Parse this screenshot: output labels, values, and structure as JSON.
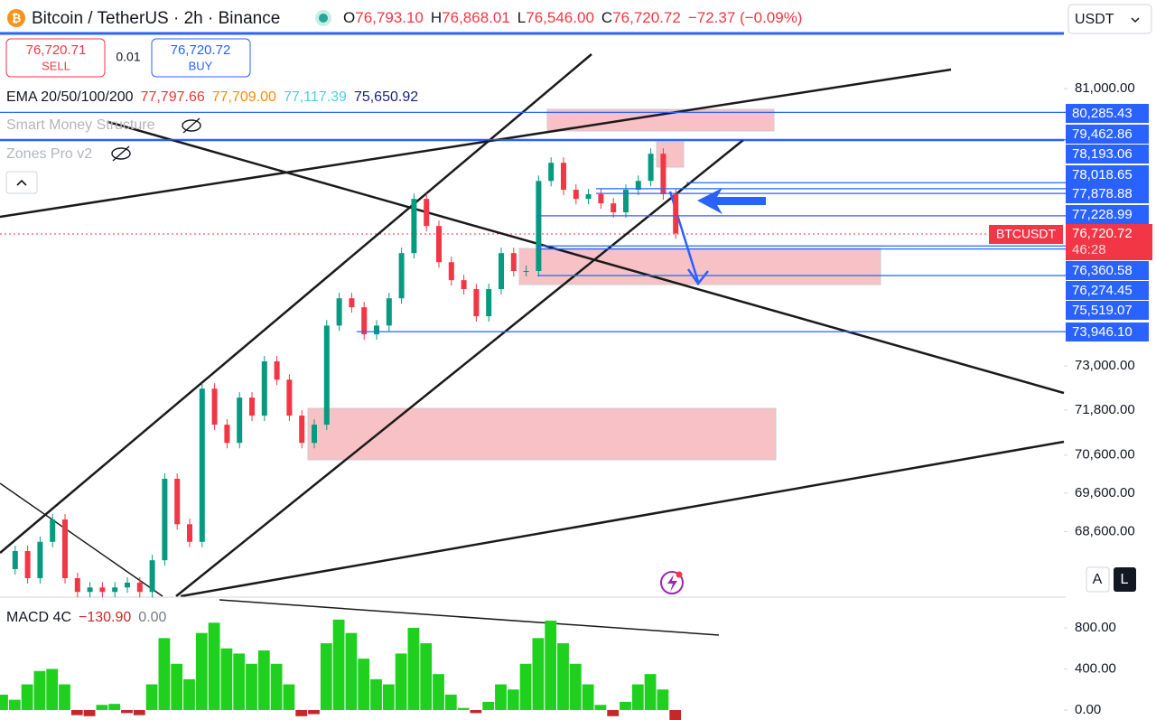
{
  "header": {
    "title": "Bitcoin / TetherUS · 2h · Binance",
    "ohlc": [
      {
        "key": "O",
        "value": "76,793.10"
      },
      {
        "key": "H",
        "value": "76,868.01"
      },
      {
        "key": "L",
        "value": "76,546.00"
      },
      {
        "key": "C",
        "value": "76,720.72"
      }
    ],
    "change": "−72.37 (−0.09%)",
    "currency": "USDT"
  },
  "trade": {
    "sell_price": "76,720.71",
    "sell": "SELL",
    "qty": "0.01",
    "buy_price": "76,720.72",
    "buy": "BUY"
  },
  "indicators": {
    "ema_name": "EMA 20/50/100/200",
    "ema_values": [
      {
        "text": "77,797.66",
        "color": "#e53935"
      },
      {
        "text": "77,709.00",
        "color": "#fb8c00"
      },
      {
        "text": "77,117.39",
        "color": "#4dd0e1"
      },
      {
        "text": "75,650.92",
        "color": "#1a237e"
      }
    ],
    "smc": "Smart Money Structure",
    "zones": "Zones Pro v2"
  },
  "chart": {
    "log": true,
    "ylim": [
      66960,
      83740
    ],
    "yticks": [
      {
        "value": 81000,
        "label": "81,000.00"
      },
      {
        "value": 73000,
        "label": "73,000.00"
      },
      {
        "value": 71800,
        "label": "71,800.00"
      },
      {
        "value": 70600,
        "label": "70,600.00"
      },
      {
        "value": 69600,
        "label": "69,600.00"
      },
      {
        "value": 68600,
        "label": "68,600.00"
      }
    ],
    "levels": [
      {
        "value": 80285.43,
        "label": "80,285.43"
      },
      {
        "value": 79462.86,
        "label": "79,462.86"
      },
      {
        "value": 78193.06,
        "label": "78,193.06"
      },
      {
        "value": 78018.65,
        "label": "78,018.65"
      },
      {
        "value": 77878.88,
        "label": "77,878.88"
      },
      {
        "value": 77228.99,
        "label": "77,228.99"
      },
      {
        "value": 76360.58,
        "label": "76,360.58"
      },
      {
        "value": 76274.45,
        "label": "76,274.45"
      },
      {
        "value": 75519.07,
        "label": "75,519.07"
      },
      {
        "value": 73946.1,
        "label": "73,946.10"
      }
    ],
    "current": {
      "symbol": "BTCUSDT",
      "price": "76,720.72",
      "countdown": "46:28"
    },
    "up_color": "#089981",
    "down_color": "#f23645",
    "closes": [
      67645,
      68105,
      67416,
      68340,
      68915,
      67416,
      67068,
      67181,
      67068,
      67181,
      67303,
      67068,
      67870,
      69976,
      68793,
      68340,
      72382,
      71410,
      70924,
      72139,
      71653,
      73127,
      72625,
      71653,
      70924,
      71410,
      74115,
      74876,
      74625,
      73872,
      74115,
      74876,
      76156,
      77720,
      76934,
      75897,
      75387,
      75136,
      74374,
      75136,
      76156,
      75646,
      75646,
      78246,
      78781,
      77987,
      77720,
      77857,
      77590,
      77331,
      77987,
      78246,
      79048,
      77857,
      76721
    ],
    "scale_buttons": [
      "A",
      "L"
    ]
  },
  "macd": {
    "name": "MACD 4C",
    "value": "−130.90",
    "signal": "0.00",
    "ylim": [
      -97,
      1090
    ],
    "yticks": [
      {
        "value": 800,
        "label": "800.00"
      },
      {
        "value": 400,
        "label": "400.00"
      },
      {
        "value": 0,
        "label": "0.00"
      }
    ],
    "pos_color": "#1fd01f",
    "neg_color": "#c62828",
    "values": [
      150,
      100,
      250,
      380,
      400,
      250,
      -50,
      -60,
      50,
      60,
      -30,
      -50,
      250,
      700,
      450,
      300,
      750,
      850,
      600,
      550,
      450,
      580,
      450,
      250,
      -60,
      -40,
      650,
      880,
      750,
      500,
      300,
      250,
      550,
      800,
      650,
      350,
      150,
      20,
      -30,
      80,
      250,
      200,
      450,
      700,
      870,
      650,
      450,
      250,
      50,
      -60,
      80,
      250,
      350,
      200,
      -131
    ]
  }
}
